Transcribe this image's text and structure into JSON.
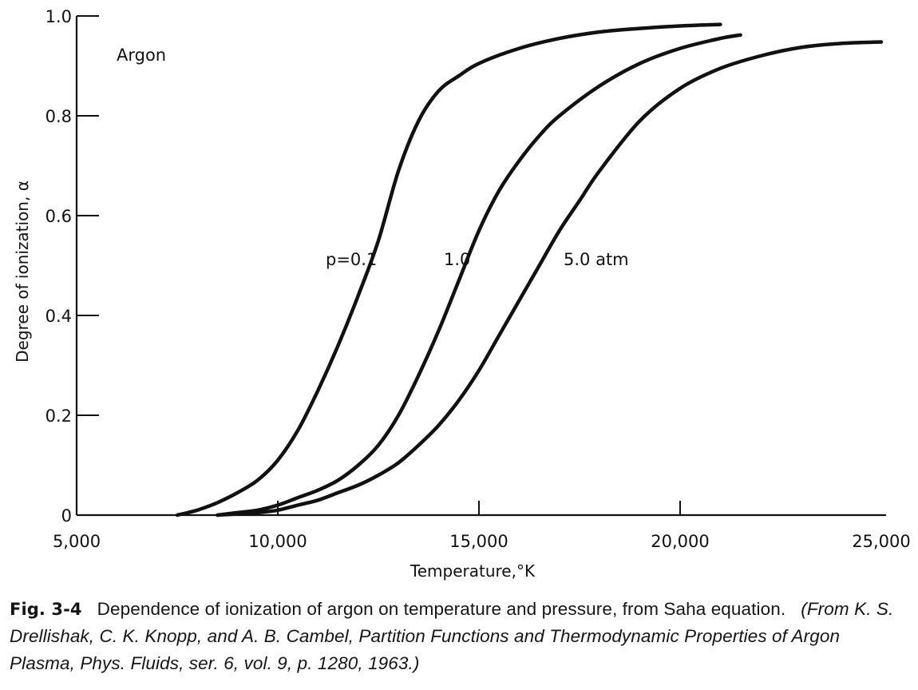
{
  "chart_data": {
    "type": "line",
    "title": "",
    "xlabel": "Temperature,°K",
    "ylabel": "Degree of ionization, α",
    "xlim": [
      5000,
      25000
    ],
    "ylim": [
      0,
      1.0
    ],
    "x_ticks": [
      5000,
      10000,
      15000,
      20000,
      25000
    ],
    "x_tick_labels": [
      "5,000",
      "10,000",
      "15,000",
      "20,000",
      "25,000"
    ],
    "y_ticks": [
      0,
      0.2,
      0.4,
      0.6,
      0.8,
      1.0
    ],
    "y_tick_labels": [
      "0",
      "0.2",
      "0.4",
      "0.6",
      "0.8",
      "1.0"
    ],
    "grid": false,
    "inset_label": "Argon",
    "series": [
      {
        "name": "p=0.1",
        "label_text": "p=0.1",
        "x": [
          7500,
          8000,
          8500,
          9000,
          9500,
          10000,
          10500,
          11000,
          11500,
          12000,
          12500,
          13000,
          13500,
          14000,
          14500,
          15000,
          16000,
          17000,
          18000,
          19000,
          20000,
          21000
        ],
        "y": [
          0.0,
          0.01,
          0.025,
          0.045,
          0.07,
          0.11,
          0.17,
          0.25,
          0.34,
          0.44,
          0.55,
          0.69,
          0.79,
          0.85,
          0.88,
          0.905,
          0.935,
          0.955,
          0.968,
          0.975,
          0.98,
          0.983
        ]
      },
      {
        "name": "1.0",
        "label_text": "1.0",
        "x": [
          8500,
          9000,
          9500,
          10000,
          10500,
          11000,
          11500,
          12000,
          12500,
          13000,
          13500,
          14000,
          14500,
          15000,
          15500,
          16000,
          16500,
          17000,
          18000,
          19000,
          20000,
          21000,
          21500
        ],
        "y": [
          0.0,
          0.005,
          0.01,
          0.02,
          0.035,
          0.05,
          0.07,
          0.1,
          0.14,
          0.2,
          0.28,
          0.37,
          0.47,
          0.57,
          0.65,
          0.71,
          0.76,
          0.8,
          0.86,
          0.905,
          0.935,
          0.955,
          0.962
        ]
      },
      {
        "name": "5.0 atm",
        "label_text": "5.0 atm",
        "x": [
          8500,
          9500,
          10000,
          10500,
          11000,
          11500,
          12000,
          12500,
          13000,
          13500,
          14000,
          14500,
          15000,
          15500,
          16000,
          16500,
          17000,
          17500,
          18000,
          19000,
          20000,
          21000,
          22000,
          23000,
          24000,
          25000
        ],
        "y": [
          0.0,
          0.005,
          0.01,
          0.02,
          0.03,
          0.045,
          0.06,
          0.08,
          0.105,
          0.14,
          0.18,
          0.23,
          0.29,
          0.36,
          0.43,
          0.5,
          0.57,
          0.63,
          0.69,
          0.79,
          0.855,
          0.895,
          0.92,
          0.937,
          0.945,
          0.948
        ]
      }
    ]
  },
  "caption": {
    "fig_label": "Fig. 3-4",
    "text": "Dependence of ionization of argon on temperature and pressure, from Saha equation.",
    "source": "(From K. S. Drellishak, C. K. Knopp, and A. B. Cambel, Partition Functions and Thermodynamic Properties of Argon Plasma, Phys. Fluids, ser. 6, vol. 9, p. 1280, 1963.)"
  }
}
